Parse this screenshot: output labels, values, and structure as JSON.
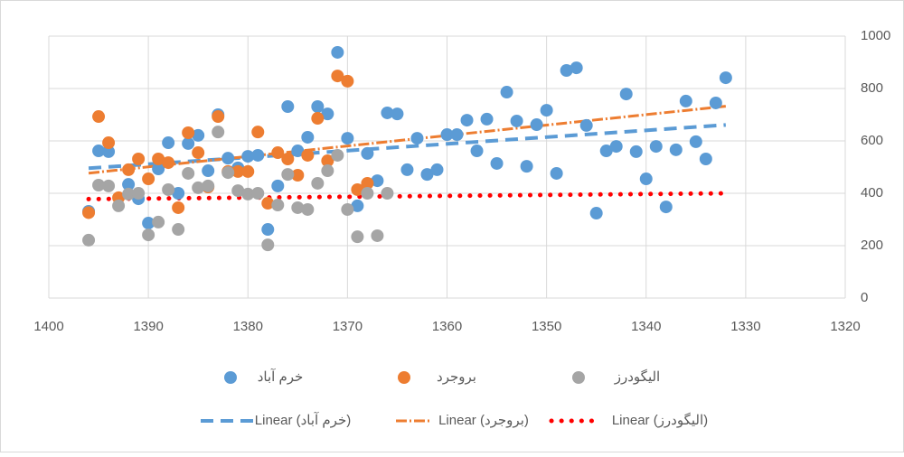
{
  "chart_data": {
    "type": "scatter",
    "xlim": [
      1400,
      1320
    ],
    "xticks": [
      1400,
      1390,
      1380,
      1370,
      1360,
      1350,
      1340,
      1330,
      1320
    ],
    "ylim": [
      0,
      1000
    ],
    "yticks": [
      0,
      200,
      400,
      600,
      800,
      1000
    ],
    "grid": true,
    "series": [
      {
        "name": "خرم آباد",
        "color": "#5b9bd5",
        "x": [
          1396,
          1395,
          1394,
          1392,
          1391,
          1390,
          1389,
          1388,
          1387,
          1386,
          1385,
          1384,
          1383,
          1382,
          1381,
          1380,
          1379,
          1378,
          1377,
          1376,
          1375,
          1374,
          1373,
          1372,
          1371,
          1370,
          1369,
          1368,
          1367,
          1366,
          1365,
          1364,
          1363,
          1362,
          1361,
          1360,
          1359,
          1358,
          1357,
          1356,
          1355,
          1354,
          1353,
          1352,
          1351,
          1350,
          1349,
          1348,
          1347,
          1346,
          1345,
          1344,
          1343,
          1342,
          1341,
          1340,
          1339,
          1338,
          1337,
          1336,
          1335,
          1334,
          1333,
          1332
        ],
        "values": [
          331,
          562,
          559,
          434,
          379,
          286,
          493,
          593,
          400,
          590,
          621,
          486,
          700,
          534,
          497,
          541,
          545,
          262,
          428,
          731,
          562,
          614,
          731,
          703,
          938,
          610,
          352,
          552,
          448,
          707,
          703,
          490,
          610,
          472,
          490,
          624,
          624,
          679,
          562,
          683,
          514,
          786,
          676,
          503,
          662,
          717,
          476,
          869,
          879,
          659,
          324,
          562,
          579,
          779,
          559,
          455,
          579,
          348,
          566,
          752,
          597,
          531,
          745,
          841
        ]
      },
      {
        "name": "بروجرد",
        "color": "#ed7d31",
        "x": [
          1396,
          1395,
          1394,
          1393,
          1392,
          1391,
          1390,
          1389,
          1388,
          1387,
          1386,
          1385,
          1384,
          1383,
          1382,
          1381,
          1380,
          1379,
          1378,
          1377,
          1376,
          1375,
          1374,
          1373,
          1372,
          1371,
          1370,
          1369,
          1368
        ],
        "values": [
          326,
          693,
          593,
          383,
          490,
          531,
          455,
          531,
          517,
          345,
          631,
          555,
          424,
          693,
          483,
          483,
          483,
          634,
          362,
          555,
          531,
          469,
          545,
          686,
          524,
          848,
          828,
          414,
          438
        ]
      },
      {
        "name": "الیگودرز",
        "color": "#a5a5a5",
        "x": [
          1396,
          1395,
          1394,
          1393,
          1392,
          1391,
          1390,
          1389,
          1388,
          1387,
          1386,
          1385,
          1384,
          1383,
          1382,
          1381,
          1380,
          1379,
          1378,
          1377,
          1376,
          1375,
          1374,
          1373,
          1372,
          1371,
          1370,
          1369,
          1368,
          1367,
          1366
        ],
        "values": [
          221,
          431,
          428,
          352,
          397,
          400,
          241,
          290,
          414,
          262,
          476,
          421,
          428,
          634,
          479,
          410,
          397,
          400,
          203,
          355,
          472,
          345,
          338,
          438,
          486,
          545,
          338,
          234,
          400,
          238,
          400
        ]
      }
    ],
    "trendlines": [
      {
        "name": "Linear (خرم آباد)",
        "series": 0,
        "color": "#5b9bd5",
        "style": "dash"
      },
      {
        "name": "Linear (بروجرد)",
        "series": 1,
        "color": "#ed7d31",
        "style": "double-dashdot"
      },
      {
        "name": "Linear (الیگودرز)",
        "series": 2,
        "color": "#ff0000",
        "style": "dot"
      }
    ]
  }
}
